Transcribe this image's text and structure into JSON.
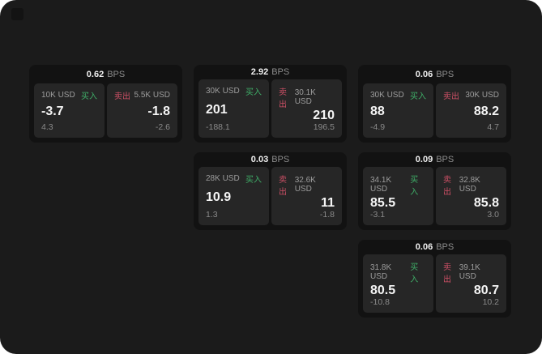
{
  "window": {
    "background": "#ffffff",
    "panel_color": "#1b1b1b"
  },
  "labels": {
    "bps": "BPS",
    "buy": "买入",
    "sell": "卖出"
  },
  "colors": {
    "buy": "#3fae68",
    "sell": "#cd5066",
    "card": "#121212",
    "tile": "#262626"
  },
  "cards": [
    {
      "bps": "0.62",
      "col": 1,
      "row": 1,
      "buy": {
        "amount": "10K USD",
        "value": "-3.7",
        "delta": "4.3"
      },
      "sell": {
        "amount": "5.5K USD",
        "value": "-1.8",
        "delta": "-2.6"
      }
    },
    {
      "bps": "2.92",
      "col": 2,
      "row": 1,
      "buy": {
        "amount": "30K USD",
        "value": "201",
        "delta": "-188.1"
      },
      "sell": {
        "amount": "30.1K USD",
        "value": "210",
        "delta": "196.5"
      }
    },
    {
      "bps": "0.06",
      "col": 3,
      "row": 1,
      "buy": {
        "amount": "30K USD",
        "value": "88",
        "delta": "-4.9"
      },
      "sell": {
        "amount": "30K USD",
        "value": "88.2",
        "delta": "4.7"
      }
    },
    {
      "bps": "0.03",
      "col": 2,
      "row": 2,
      "buy": {
        "amount": "28K USD",
        "value": "10.9",
        "delta": "1.3"
      },
      "sell": {
        "amount": "32.6K USD",
        "value": "11",
        "delta": "-1.8"
      }
    },
    {
      "bps": "0.09",
      "col": 3,
      "row": 2,
      "buy": {
        "amount": "34.1K USD",
        "value": "85.5",
        "delta": "-3.1"
      },
      "sell": {
        "amount": "32.8K USD",
        "value": "85.8",
        "delta": "3.0"
      }
    },
    {
      "bps": "0.06",
      "col": 3,
      "row": 3,
      "buy": {
        "amount": "31.8K USD",
        "value": "80.5",
        "delta": "-10.8"
      },
      "sell": {
        "amount": "39.1K USD",
        "value": "80.7",
        "delta": "10.2"
      }
    }
  ]
}
